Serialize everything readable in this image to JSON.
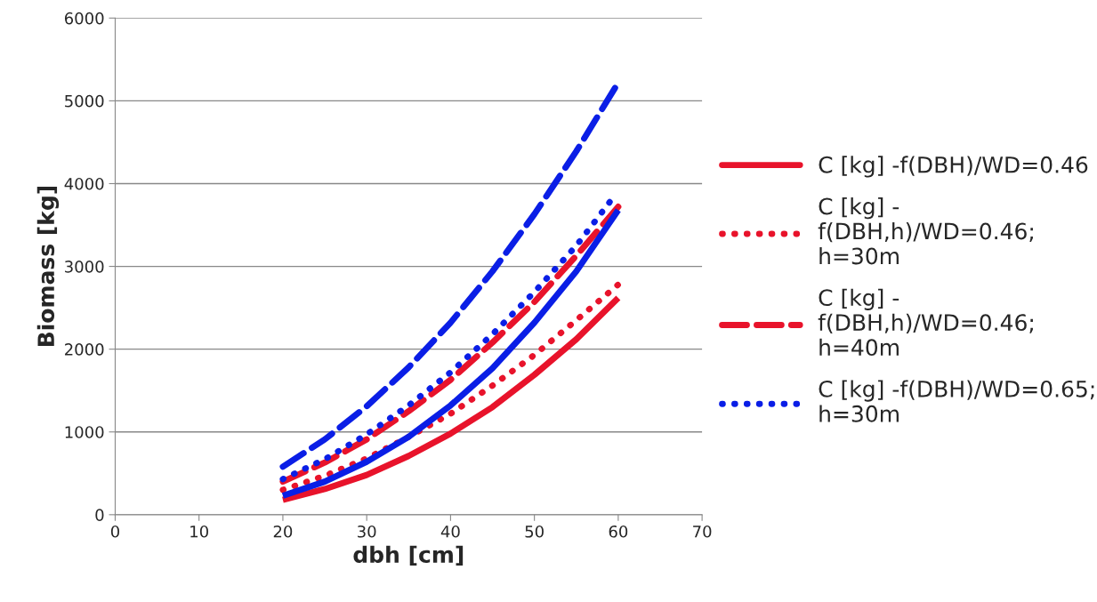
{
  "chart_data": {
    "type": "line",
    "xlabel": "dbh [cm]",
    "ylabel": "Biomass [kg]",
    "x": [
      20,
      25,
      30,
      35,
      40,
      45,
      50,
      55,
      60
    ],
    "series": [
      {
        "name": "C [kg] -f(DBH)/WD=0.46",
        "color": "#e8132b",
        "line_style": "solid",
        "values": [
          180,
          310,
          480,
          710,
          980,
          1300,
          1690,
          2120,
          2620
        ]
      },
      {
        "name": "C [kg] -\nf(DBH,h)/WD=0.46;\nh=30m",
        "color": "#e8132b",
        "line_style": "dotted",
        "values": [
          300,
          470,
          680,
          940,
          1220,
          1560,
          1930,
          2350,
          2780
        ]
      },
      {
        "name": "C [kg] -\nf(DBH,h)/WD=0.46;\nh=40m",
        "color": "#e8132b",
        "line_style": "dashed",
        "values": [
          400,
          630,
          910,
          1250,
          1630,
          2080,
          2570,
          3130,
          3720
        ]
      },
      {
        "name": "C [kg] -f(DBH)/WD=0.65;\nh=30m",
        "color": "#0a1ee6",
        "line_style": "dotted",
        "x": [
          20,
          25,
          30,
          35,
          40,
          45,
          50,
          55,
          59
        ],
        "values": [
          430,
          670,
          970,
          1320,
          1720,
          2180,
          2690,
          3250,
          3780
        ]
      },
      {
        "color": "#0a1ee6",
        "line_style": "solid",
        "values": [
          230,
          400,
          640,
          940,
          1320,
          1770,
          2320,
          2940,
          3680
        ]
      },
      {
        "color": "#0a1ee6",
        "line_style": "dashed",
        "values": [
          580,
          910,
          1310,
          1780,
          2320,
          2940,
          3630,
          4390,
          5220
        ]
      }
    ],
    "xlim": [
      0,
      70
    ],
    "xticks": [
      0,
      10,
      20,
      30,
      40,
      50,
      60,
      70
    ],
    "ylim": [
      0,
      6000
    ],
    "yticks": [
      0,
      1000,
      2000,
      3000,
      4000,
      5000,
      6000
    ],
    "grid": "y",
    "legend": "right",
    "marker": "none"
  }
}
